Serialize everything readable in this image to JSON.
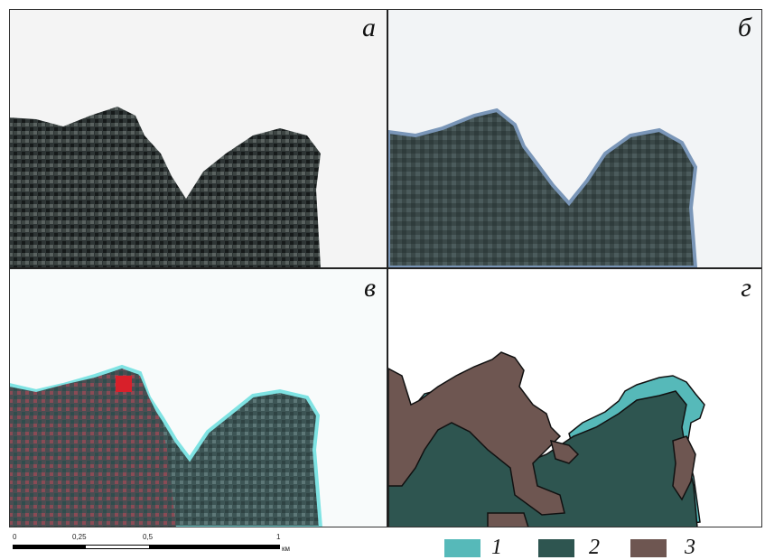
{
  "panels": [
    {
      "id": "a",
      "label": "а"
    },
    {
      "id": "b",
      "label": "б"
    },
    {
      "id": "c",
      "label": "в"
    },
    {
      "id": "d",
      "label": "г"
    }
  ],
  "scalebar": {
    "ticks": [
      "0",
      "0,25",
      "0,5",
      "1"
    ],
    "unit": "км"
  },
  "legend": [
    {
      "number": "1",
      "color": "#56b9b9"
    },
    {
      "number": "2",
      "color": "#2e5550"
    },
    {
      "number": "3",
      "color": "#6e5651"
    }
  ]
}
